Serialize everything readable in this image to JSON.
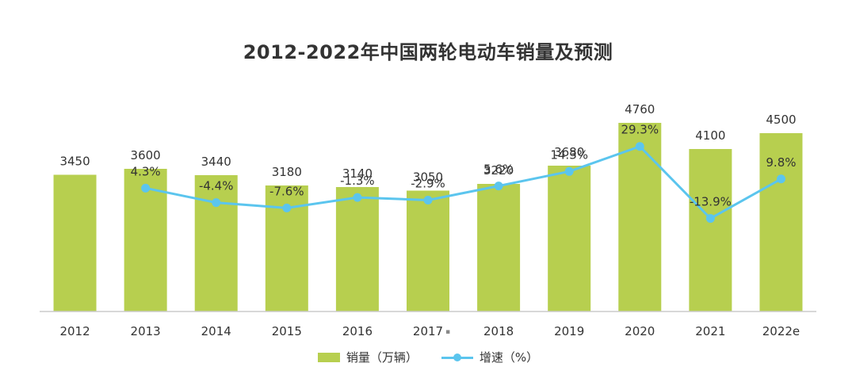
{
  "chart_data": {
    "type": "bar",
    "title": "2012-2022年中国两轮电动车销量及预测",
    "categories": [
      "2012",
      "2013",
      "2014",
      "2015",
      "2016",
      "2017",
      "2018",
      "2019",
      "2020",
      "2021",
      "2022e"
    ],
    "category_markers": {
      "2017": "▪"
    },
    "series": [
      {
        "name": "销量（万辆）",
        "type": "bar",
        "color": "#b7cf4f",
        "values": [
          3450,
          3600,
          3440,
          3180,
          3140,
          3050,
          3220,
          3680,
          4760,
          4100,
          4500
        ],
        "labels": [
          "3450",
          "3600",
          "3440",
          "3180",
          "3140",
          "3050",
          "3220",
          "3680",
          "4760",
          "4100",
          "4500"
        ]
      },
      {
        "name": "增速（%）",
        "type": "line",
        "color": "#5bc5ee",
        "values": [
          null,
          4.3,
          -4.4,
          -7.6,
          -1.3,
          -2.9,
          5.6,
          14.3,
          29.3,
          -13.9,
          9.8
        ],
        "labels": [
          null,
          "4.3%",
          "-4.4%",
          "-7.6%",
          "-1.3%",
          "-2.9%",
          "5.6%",
          "14.3%",
          "29.3%",
          "-13.9%",
          "9.8%"
        ]
      }
    ],
    "bar_axis_range": [
      0,
      6300
    ],
    "line_axis_range": [
      -35,
      110
    ],
    "grid": false,
    "legend_position": "bottom"
  },
  "legend": {
    "bar_label": "销量（万辆）",
    "line_label": "增速（%）"
  }
}
